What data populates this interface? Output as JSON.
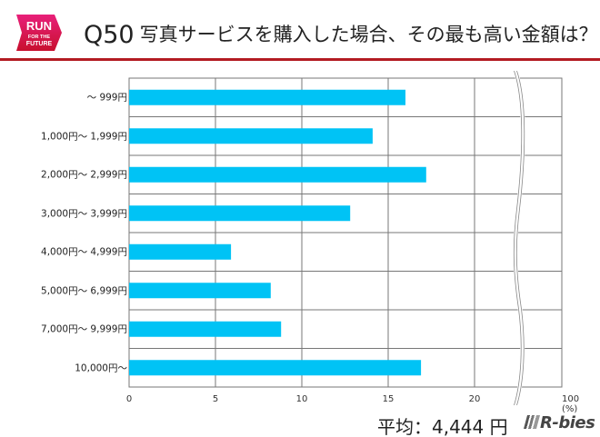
{
  "header": {
    "logo_text": "RUN FOR THE FUTURE",
    "question_no": "Q50",
    "title": "写真サービスを購入した場合、その最も高い金額は？"
  },
  "chart_data": {
    "type": "bar",
    "orientation": "horizontal",
    "categories": [
      "～ 999円",
      "1,000円～ 1,999円",
      "2,000円～ 2,999円",
      "3,000円～ 3,999円",
      "4,000円～ 4,999円",
      "5,000円～ 6,999円",
      "7,000円～ 9,999円",
      "10,000円～"
    ],
    "values": [
      16.0,
      14.1,
      17.2,
      12.8,
      5.9,
      8.2,
      8.8,
      16.9
    ],
    "x_ticks": [
      "0",
      "5",
      "10",
      "15",
      "20",
      "100 (%)"
    ],
    "xlim": [
      0,
      25
    ],
    "axis_break": "between 20 and 100",
    "grid": true,
    "bar_color": "#00c3f5",
    "xlabel": "",
    "ylabel": ""
  },
  "footer": {
    "average": "平均：4,444 円",
    "brand": "R-bies"
  },
  "colors": {
    "accent": "#b31b22",
    "logo": "#e0105a"
  }
}
